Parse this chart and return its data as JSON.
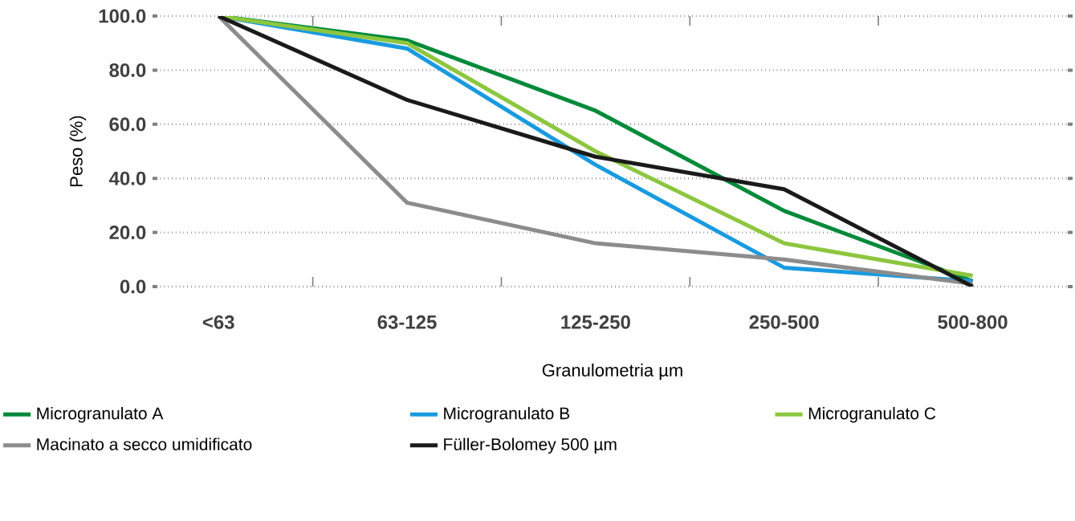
{
  "chart_data": {
    "type": "line",
    "xlabel": "Granulometria µm",
    "ylabel": "Peso (%)",
    "categories": [
      "<63",
      "63-125",
      "125-250",
      "250-500",
      "500-800"
    ],
    "series": [
      {
        "name": "Microgranulato A",
        "color": "#008a3a",
        "values": [
          100,
          91,
          65,
          28,
          2
        ]
      },
      {
        "name": "Microgranulato B",
        "color": "#1a9ae0",
        "values": [
          100,
          88,
          45,
          7,
          2
        ]
      },
      {
        "name": "Microgranulato C",
        "color": "#8dc63f",
        "values": [
          100,
          90,
          50,
          16,
          4
        ]
      },
      {
        "name": "Macinato a secco umidificato",
        "color": "#8c8c8c",
        "values": [
          100,
          31,
          16,
          10,
          1
        ]
      },
      {
        "name": "Füller-Bolomey 500 µm",
        "color": "#1a1a1a",
        "values": [
          100,
          69,
          48,
          36,
          0
        ]
      }
    ],
    "ylim": [
      0,
      100
    ],
    "yticks": [
      {
        "value": 0,
        "label": "0.0"
      },
      {
        "value": 20,
        "label": "20.0"
      },
      {
        "value": 40,
        "label": "40.0"
      },
      {
        "value": 60,
        "label": "60.0"
      },
      {
        "value": 80,
        "label": "80.0"
      },
      {
        "value": 100,
        "label": "100.0"
      }
    ],
    "grid": "y",
    "legend": "bottom",
    "marker": "none",
    "line_style": "solid"
  }
}
